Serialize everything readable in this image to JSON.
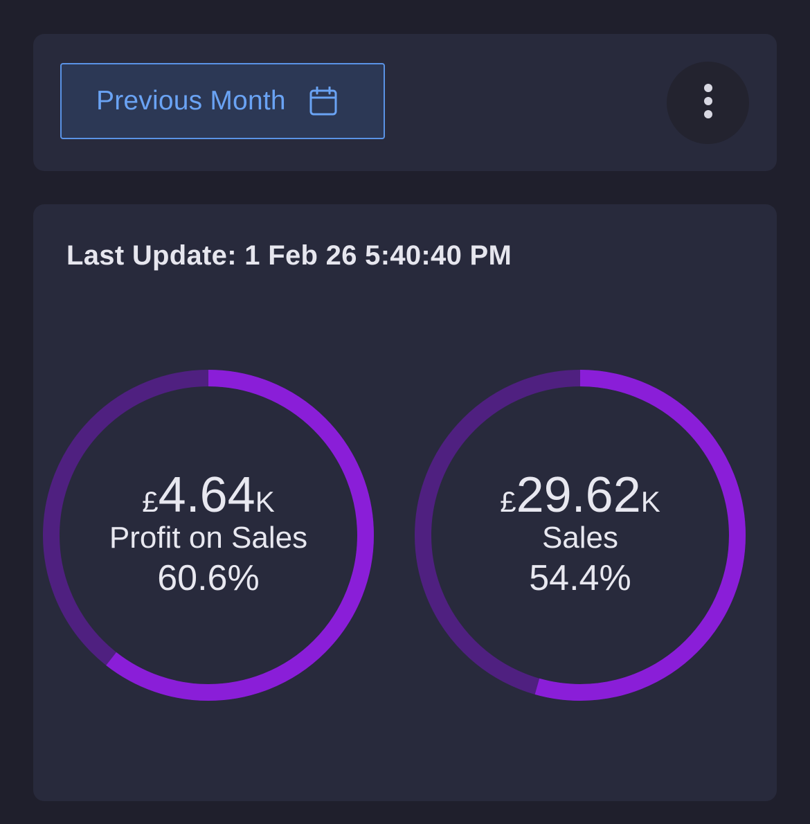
{
  "toolbar": {
    "period_label": "Previous Month",
    "calendar_icon": "calendar-icon",
    "more_icon": "more-vertical-icon"
  },
  "card": {
    "last_update": "Last Update: 1 Feb 26 5:40:40 PM"
  },
  "colors": {
    "background": "#1f1f2c",
    "card": "#282a3c",
    "accent_blue": "#6aa3f4",
    "ring_fill": "#8a1ed8",
    "ring_track": "#4f2080",
    "text": "#e8e8f0"
  },
  "gauges": [
    {
      "currency": "£",
      "amount": "4.64",
      "unit": "K",
      "label": "Profit on Sales",
      "percent_text": "60.6%",
      "percent_value": 0.606
    },
    {
      "currency": "£",
      "amount": "29.62",
      "unit": "K",
      "label": "Sales",
      "percent_text": "54.4%",
      "percent_value": 0.544
    }
  ]
}
